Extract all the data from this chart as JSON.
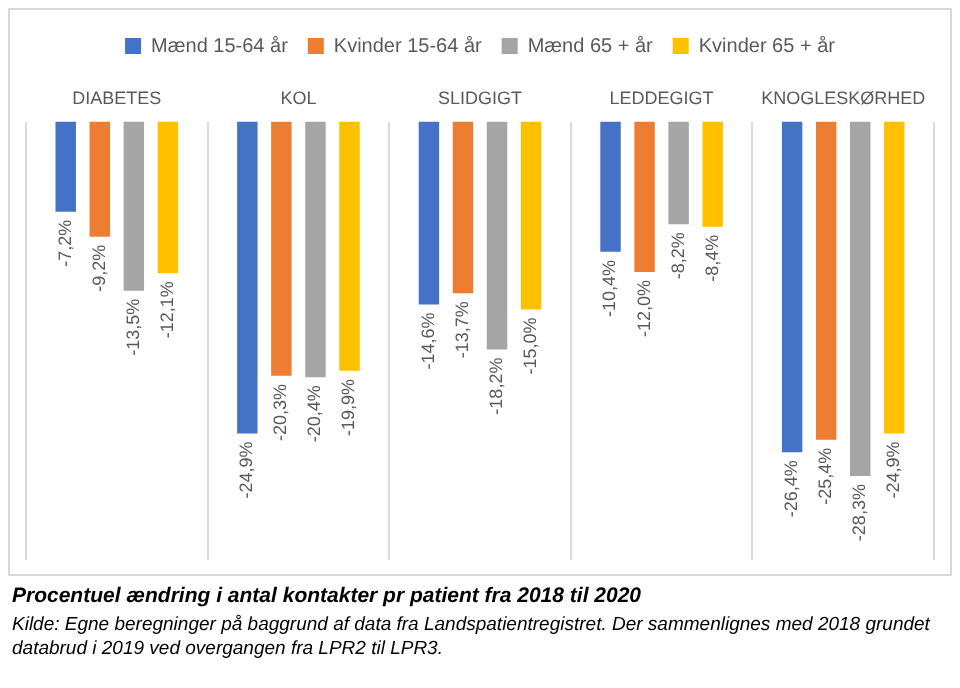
{
  "chart_data": {
    "type": "bar",
    "title": "Procentuel ændring i antal kontakter pr patient fra 2018 til 2020",
    "annotations": [
      "Kilde: Egne beregninger på baggrund af data fra Landspatientregistret. Der sammenlignes med 2018 grundet databrud i 2019 ved overgangen fra LPR2 til LPR3."
    ],
    "categories": [
      "DIABETES",
      "KOL",
      "SLIDGIGT",
      "LEDDEGIGT",
      "KNOGLESKØRHED"
    ],
    "series": [
      {
        "name": "Mænd 15-64 år",
        "color": "#4472c4",
        "values": [
          -7.2,
          -24.9,
          -14.6,
          -10.4,
          -26.4
        ],
        "value_labels": [
          "-7,2%",
          "-24,9%",
          "-14,6%",
          "-10,4%",
          "-26,4%"
        ]
      },
      {
        "name": "Kvinder 15-64 år",
        "color": "#ed7d31",
        "values": [
          -9.2,
          -20.3,
          -13.7,
          -12.0,
          -25.4
        ],
        "value_labels": [
          "-9,2%",
          "-20,3%",
          "-13,7%",
          "-12,0%",
          "-25,4%"
        ]
      },
      {
        "name": "Mænd 65 + år",
        "color": "#a5a5a5",
        "values": [
          -13.5,
          -20.4,
          -18.2,
          -8.2,
          -28.3
        ],
        "value_labels": [
          "-13,5%",
          "-20,4%",
          "-18,2%",
          "-8,2%",
          "-28,3%"
        ]
      },
      {
        "name": "Kvinder 65 + år",
        "color": "#ffc000",
        "values": [
          -12.1,
          -19.9,
          -15.0,
          -8.4,
          -24.9
        ],
        "value_labels": [
          "-12,1%",
          "-19,9%",
          "-15,0%",
          "-8,4%",
          "-24,9%"
        ]
      }
    ],
    "grid": "x",
    "legend": "top"
  }
}
